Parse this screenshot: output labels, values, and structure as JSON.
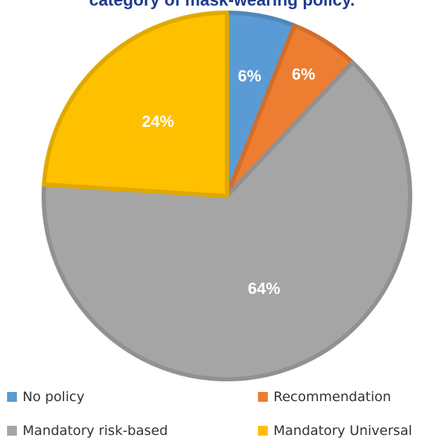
{
  "chart_data": {
    "type": "pie",
    "title": "category of mask-wearing policy.",
    "slices": [
      {
        "label": "No policy",
        "value": 6,
        "display": "6%",
        "color": "#5b9bd5"
      },
      {
        "label": "Recommendation",
        "value": 6,
        "display": "6%",
        "color": "#ed7d31"
      },
      {
        "label": "Mandatory risk-based",
        "value": 64,
        "display": "64%",
        "color": "#a5a5a5"
      },
      {
        "label": "Mandatory Universal",
        "value": 24,
        "display": "24%",
        "color": "#ffc000"
      }
    ],
    "legend_position": "bottom"
  }
}
